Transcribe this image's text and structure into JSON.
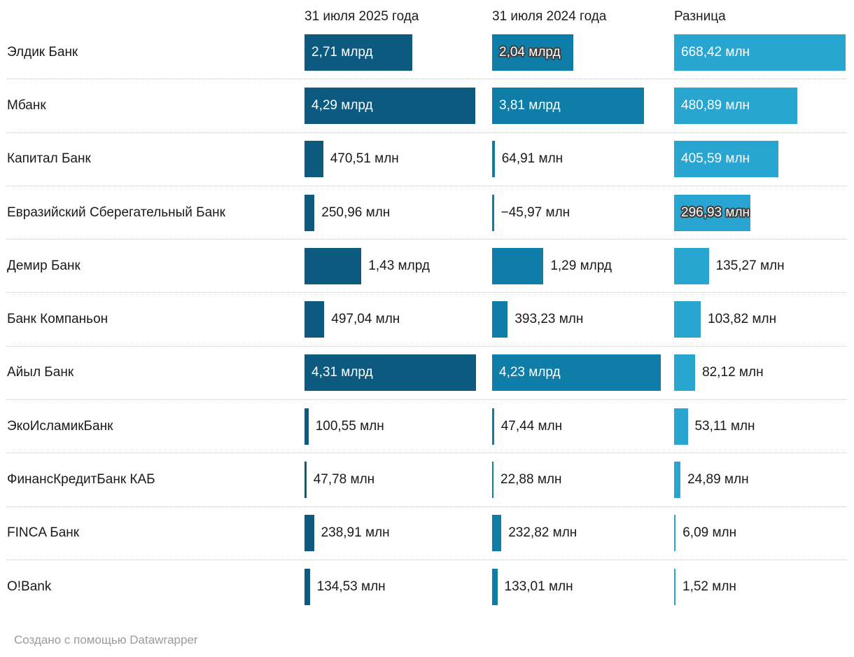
{
  "chart_data": {
    "type": "bar",
    "layout": "bar-column-table",
    "grid": "off",
    "legend_position": "column-headers",
    "columns": [
      {
        "label": "31 июля 2025 года",
        "color": "#0c5a7f",
        "scale_max_mln": 4310
      },
      {
        "label": "31 июля 2024 года",
        "color": "#0e7ea8",
        "scale_max_mln": 4310
      },
      {
        "label": "Разница",
        "color": "#29a5d2",
        "scale_max_mln": 668.42
      }
    ],
    "categories": [
      "Элдик Банк",
      "Мбанк",
      "Капитал Банк",
      "Евразийский Сберегательный Банк",
      "Демир Банк",
      "Банк Компаньон",
      "Айыл Банк",
      "ЭкоИсламикБанк",
      "ФинансКредитБанк КАБ",
      "FINCA Банк",
      "O!Bank"
    ],
    "rows": [
      {
        "bank": "Элдик Банк",
        "cells": [
          {
            "value_mln": 2710,
            "label": "2,71 млрд",
            "label_pos": "inside"
          },
          {
            "value_mln": 2040,
            "label": "2,04 млрд",
            "label_pos": "inside-halo"
          },
          {
            "value_mln": 668.42,
            "label": "668,42 млн",
            "label_pos": "inside"
          }
        ]
      },
      {
        "bank": "Мбанк",
        "cells": [
          {
            "value_mln": 4290,
            "label": "4,29 млрд",
            "label_pos": "inside"
          },
          {
            "value_mln": 3810,
            "label": "3,81 млрд",
            "label_pos": "inside"
          },
          {
            "value_mln": 480.89,
            "label": "480,89 млн",
            "label_pos": "inside"
          }
        ]
      },
      {
        "bank": "Капитал Банк",
        "cells": [
          {
            "value_mln": 470.51,
            "label": "470,51 млн",
            "label_pos": "outside"
          },
          {
            "value_mln": 64.91,
            "label": "64,91 млн",
            "label_pos": "outside"
          },
          {
            "value_mln": 405.59,
            "label": "405,59 млн",
            "label_pos": "inside"
          }
        ]
      },
      {
        "bank": "Евразийский Сберегательный Банк",
        "cells": [
          {
            "value_mln": 250.96,
            "label": "250,96 млн",
            "label_pos": "outside"
          },
          {
            "value_mln": -45.97,
            "label": "−45,97 млн",
            "label_pos": "outside"
          },
          {
            "value_mln": 296.93,
            "label": "296,93 млн",
            "label_pos": "inside-halo"
          }
        ]
      },
      {
        "bank": "Демир Банк",
        "cells": [
          {
            "value_mln": 1430,
            "label": "1,43 млрд",
            "label_pos": "outside"
          },
          {
            "value_mln": 1290,
            "label": "1,29 млрд",
            "label_pos": "outside"
          },
          {
            "value_mln": 135.27,
            "label": "135,27 млн",
            "label_pos": "outside"
          }
        ]
      },
      {
        "bank": "Банк Компаньон",
        "cells": [
          {
            "value_mln": 497.04,
            "label": "497,04 млн",
            "label_pos": "outside"
          },
          {
            "value_mln": 393.23,
            "label": "393,23 млн",
            "label_pos": "outside"
          },
          {
            "value_mln": 103.82,
            "label": "103,82 млн",
            "label_pos": "outside"
          }
        ]
      },
      {
        "bank": "Айыл Банк",
        "cells": [
          {
            "value_mln": 4310,
            "label": "4,31 млрд",
            "label_pos": "inside"
          },
          {
            "value_mln": 4230,
            "label": "4,23 млрд",
            "label_pos": "inside"
          },
          {
            "value_mln": 82.12,
            "label": "82,12 млн",
            "label_pos": "outside"
          }
        ]
      },
      {
        "bank": "ЭкоИсламикБанк",
        "cells": [
          {
            "value_mln": 100.55,
            "label": "100,55 млн",
            "label_pos": "outside"
          },
          {
            "value_mln": 47.44,
            "label": "47,44 млн",
            "label_pos": "outside"
          },
          {
            "value_mln": 53.11,
            "label": "53,11 млн",
            "label_pos": "outside"
          }
        ]
      },
      {
        "bank": "ФинансКредитБанк КАБ",
        "cells": [
          {
            "value_mln": 47.78,
            "label": "47,78 млн",
            "label_pos": "outside"
          },
          {
            "value_mln": 22.88,
            "label": "22,88 млн",
            "label_pos": "outside"
          },
          {
            "value_mln": 24.89,
            "label": "24,89 млн",
            "label_pos": "outside"
          }
        ]
      },
      {
        "bank": "FINCA Банк",
        "cells": [
          {
            "value_mln": 238.91,
            "label": "238,91 млн",
            "label_pos": "outside"
          },
          {
            "value_mln": 232.82,
            "label": "232,82 млн",
            "label_pos": "outside"
          },
          {
            "value_mln": 6.09,
            "label": "6,09 млн",
            "label_pos": "outside"
          }
        ]
      },
      {
        "bank": "O!Bank",
        "cells": [
          {
            "value_mln": 134.53,
            "label": "134,53 млн",
            "label_pos": "outside"
          },
          {
            "value_mln": 133.01,
            "label": "133,01 млн",
            "label_pos": "outside"
          },
          {
            "value_mln": 1.52,
            "label": "1,52 млн",
            "label_pos": "outside"
          }
        ]
      }
    ]
  },
  "footer": {
    "credit": "Создано с помощью Datawrapper"
  }
}
